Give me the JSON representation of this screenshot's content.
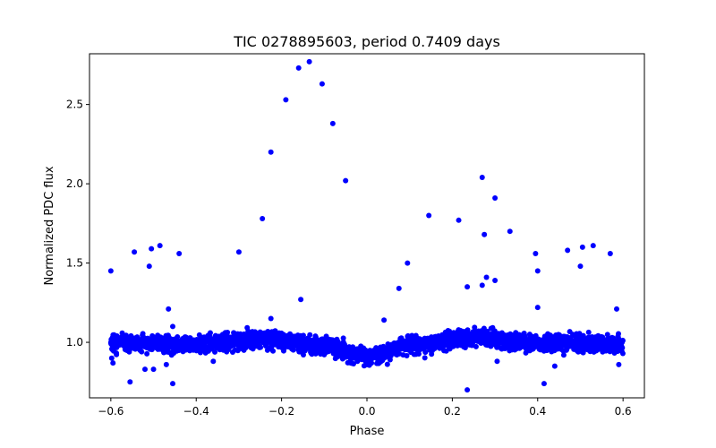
{
  "chart_data": {
    "type": "scatter",
    "title": "TIC 0278895603, period 0.7409 days",
    "xlabel": "Phase",
    "ylabel": "Normalized PDC flux",
    "xlim": [
      -0.65,
      0.65
    ],
    "ylim": [
      0.65,
      2.82
    ],
    "xticks": [
      -0.6,
      -0.4,
      -0.2,
      0.0,
      0.2,
      0.4,
      0.6
    ],
    "xtick_labels": [
      "−0.6",
      "−0.4",
      "−0.2",
      "0.0",
      "0.2",
      "0.4",
      "0.6"
    ],
    "yticks": [
      1.0,
      1.5,
      2.0,
      2.5
    ],
    "ytick_labels": [
      "1.0",
      "1.5",
      "2.0",
      "2.5"
    ],
    "grid": false,
    "marker_color": "#0000ff",
    "series": [
      {
        "x": [
          -0.6,
          -0.598,
          -0.595,
          -0.555,
          -0.545,
          -0.52,
          -0.51,
          -0.505,
          -0.5,
          -0.485,
          -0.47,
          -0.465,
          -0.455,
          -0.44,
          -0.3,
          -0.245,
          -0.225,
          -0.19,
          -0.16,
          -0.155,
          -0.135,
          -0.105,
          -0.08,
          -0.05,
          0.075,
          0.095,
          0.145,
          0.215,
          0.235,
          0.27,
          0.275,
          0.28,
          0.3,
          0.335,
          0.395,
          0.4,
          0.47,
          0.5,
          0.505,
          0.53,
          0.57,
          0.585,
          0.59,
          0.235,
          -0.455,
          0.3,
          0.305,
          -0.225,
          0.4,
          0.415,
          0.44,
          -0.36,
          0.04,
          0.27
        ],
        "y": [
          1.45,
          0.9,
          0.87,
          0.75,
          1.57,
          0.83,
          1.48,
          1.59,
          0.83,
          1.61,
          0.86,
          1.21,
          0.74,
          1.56,
          1.57,
          1.78,
          2.2,
          2.53,
          2.73,
          1.27,
          2.77,
          2.63,
          2.38,
          2.02,
          1.34,
          1.5,
          1.8,
          1.77,
          0.7,
          2.04,
          1.68,
          1.41,
          1.91,
          1.7,
          1.56,
          1.45,
          1.58,
          1.48,
          1.6,
          1.61,
          1.56,
          1.21,
          0.86,
          1.35,
          1.1,
          1.39,
          0.88,
          1.15,
          1.22,
          0.74,
          0.85,
          0.88,
          1.14,
          1.36
        ]
      }
    ],
    "band": {
      "description": "dense cloud of points following a smooth modulation",
      "x_range": [
        -0.6,
        0.6
      ],
      "mean_flux_at_phase": {
        "x": [
          -0.6,
          -0.4,
          -0.25,
          -0.1,
          0.0,
          0.1,
          0.25,
          0.4,
          0.6
        ],
        "y": [
          1.0,
          0.99,
          1.02,
          0.98,
          0.91,
          0.98,
          1.03,
          1.0,
          0.99
        ]
      },
      "scatter": 0.045
    }
  }
}
